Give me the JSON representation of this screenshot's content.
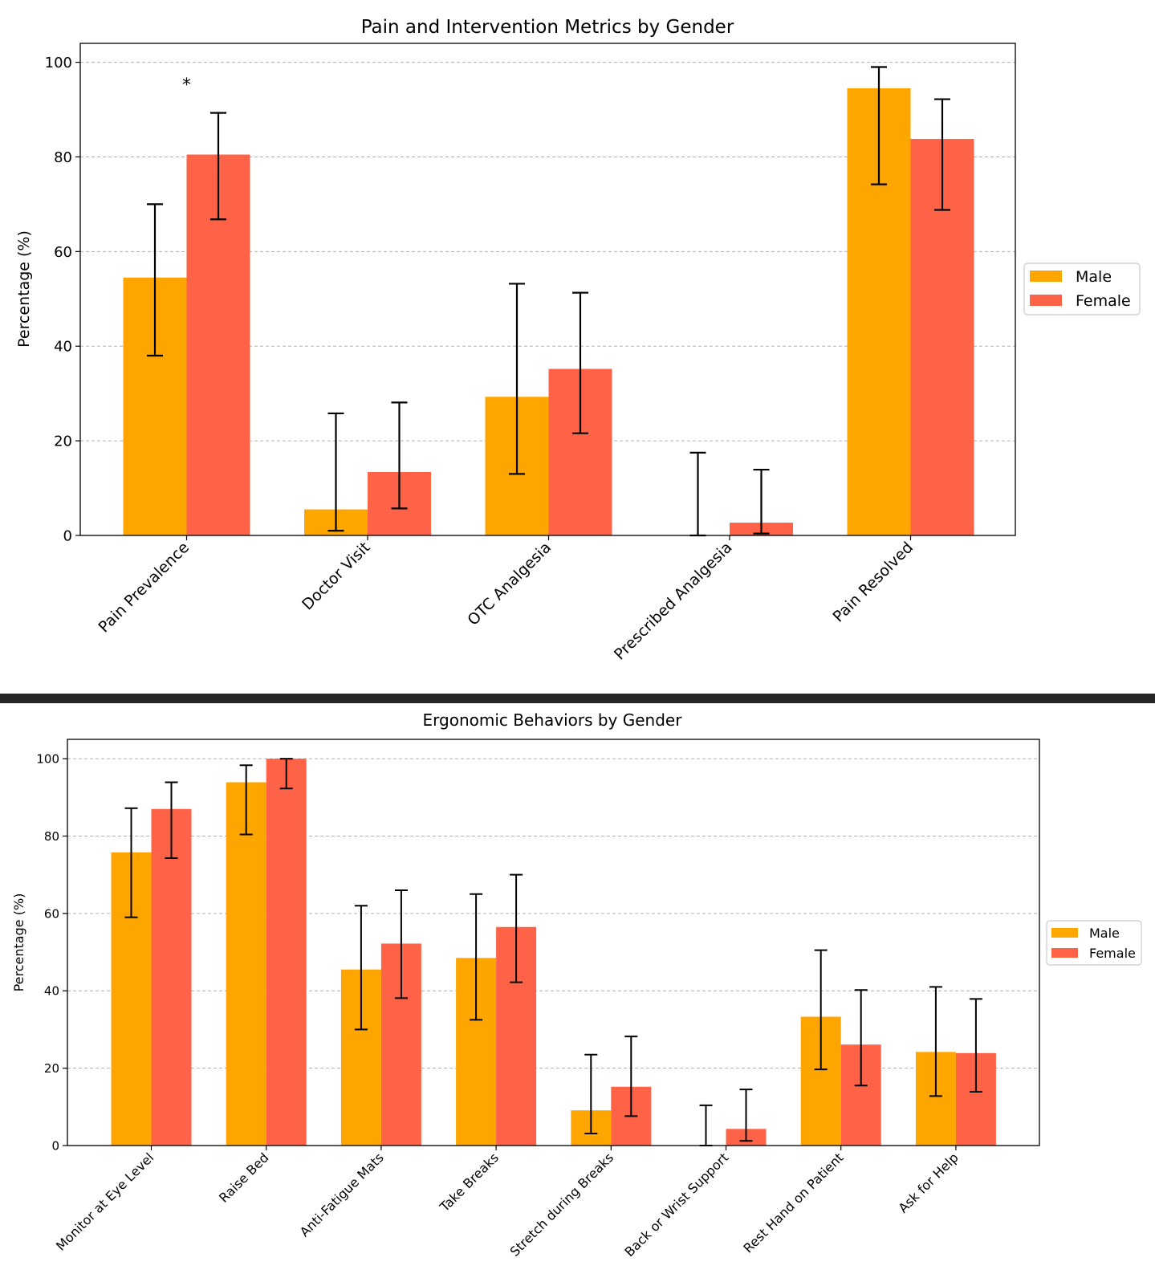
{
  "chart_data": [
    {
      "type": "bar",
      "title": "Pain and Intervention Metrics by Gender",
      "xlabel": "",
      "ylabel": "Percentage (%)",
      "ylim": [
        0,
        104
      ],
      "yticks": [
        0,
        20,
        40,
        60,
        80,
        100
      ],
      "grid": "y dashed",
      "legend": "outside-right",
      "categories": [
        "Pain Prevalence",
        "Doctor Visit",
        "OTC Analgesia",
        "Prescribed Analgesia",
        "Pain Resolved"
      ],
      "series": [
        {
          "name": "Male",
          "color": "#ffa500",
          "values": [
            54.5,
            5.5,
            29.3,
            0.0,
            94.5
          ],
          "err_low": [
            38.0,
            1.0,
            13.0,
            0.0,
            74.2
          ],
          "err_high": [
            70.0,
            25.8,
            53.2,
            17.5,
            99.0
          ]
        },
        {
          "name": "Female",
          "color": "#ff6347",
          "values": [
            80.5,
            13.4,
            35.2,
            2.7,
            83.8
          ],
          "err_low": [
            66.8,
            5.7,
            21.6,
            0.4,
            68.8
          ],
          "err_high": [
            89.3,
            28.1,
            51.3,
            13.9,
            92.2
          ]
        }
      ],
      "annotations": [
        {
          "text": "*",
          "category": "Pain Prevalence",
          "y": 94
        }
      ]
    },
    {
      "type": "bar",
      "title": "Ergonomic Behaviors by Gender",
      "xlabel": "",
      "ylabel": "Percentage (%)",
      "ylim": [
        0,
        105
      ],
      "yticks": [
        0,
        20,
        40,
        60,
        80,
        100
      ],
      "grid": "y dashed",
      "legend": "outside-right",
      "categories": [
        "Monitor at Eye Level",
        "Raise Bed",
        "Anti-Fatigue Mats",
        "Take Breaks",
        "Stretch during Breaks",
        "Back or Wrist Support",
        "Rest Hand on Patient",
        "Ask for Help"
      ],
      "series": [
        {
          "name": "Male",
          "color": "#ffa500",
          "values": [
            75.8,
            93.9,
            45.5,
            48.5,
            9.1,
            0.0,
            33.3,
            24.2
          ],
          "err_low": [
            59.0,
            80.4,
            30.0,
            32.5,
            3.1,
            0.0,
            19.7,
            12.8
          ],
          "err_high": [
            87.2,
            98.3,
            62.0,
            65.0,
            23.5,
            10.4,
            50.5,
            41.0
          ]
        },
        {
          "name": "Female",
          "color": "#ff6347",
          "values": [
            87.0,
            100.0,
            52.2,
            56.5,
            15.2,
            4.3,
            26.1,
            23.9
          ],
          "err_low": [
            74.3,
            92.3,
            38.1,
            42.2,
            7.6,
            1.2,
            15.5,
            13.9
          ],
          "err_high": [
            93.9,
            100.0,
            66.0,
            70.0,
            28.2,
            14.5,
            40.2,
            37.9
          ]
        }
      ],
      "annotations": []
    }
  ]
}
